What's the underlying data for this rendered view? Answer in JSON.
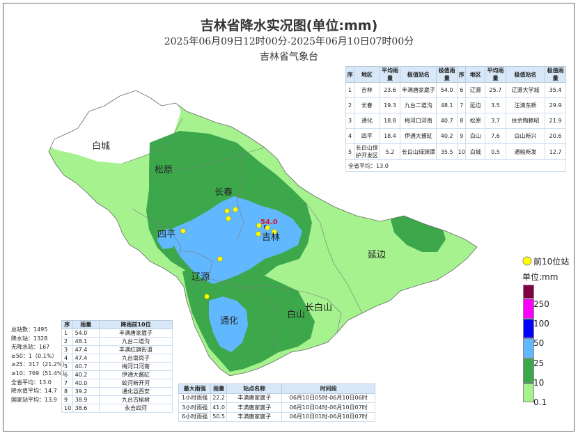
{
  "title": "吉林省降水实况图(单位:mm)",
  "period": "2025年06月09日12时00分-2025年06月10日07时00分",
  "agency": "吉林省气象台",
  "region_table": {
    "headers": [
      "序",
      "地区",
      "平均雨量",
      "极值站名",
      "极值雨量",
      "序",
      "地区",
      "平均雨量",
      "极值站名",
      "极值雨量"
    ],
    "rows": [
      [
        "1",
        "吉林",
        "23.6",
        "丰满唐家崴子",
        "54.0",
        "6",
        "辽源",
        "25.7",
        "辽源大学城",
        "35.4"
      ],
      [
        "2",
        "长春",
        "19.3",
        "九台二道沟",
        "48.1",
        "7",
        "延边",
        "3.5",
        "汪清东新",
        "29.9"
      ],
      [
        "3",
        "通化",
        "18.8",
        "梅河口河南",
        "40.7",
        "8",
        "松原",
        "3.7",
        "扶余陶赖昭",
        "21.9"
      ],
      [
        "4",
        "四平",
        "18.4",
        "伊通大酱缸",
        "40.2",
        "9",
        "白山",
        "7.6",
        "白山新兴",
        "20.6"
      ],
      [
        "5",
        "长白山保护开发区",
        "5.2",
        "长白山绿渊潭",
        "35.5",
        "10",
        "白城",
        "0.5",
        "通榆新发",
        "12.7"
      ]
    ],
    "footer": "全省平均：13.0"
  },
  "stats": [
    "总站数：1495",
    "降水站：1328",
    "无降水站：167",
    "≥50：1（0.1%）",
    "≥25：317（21.2%）",
    "≥10：769（51.4%）",
    "全省平均：13.0",
    "降水值平均：14.7",
    "国家站平均：13.9"
  ],
  "top10_table": {
    "headers": [
      "序",
      "雨量",
      "降雨前10位"
    ],
    "rows": [
      [
        "1",
        "54.0",
        "丰满唐家崴子"
      ],
      [
        "2",
        "48.1",
        "九台二道沟"
      ],
      [
        "3",
        "47.4",
        "丰满红旗街道"
      ],
      [
        "4",
        "47.4",
        "九台南岗子"
      ],
      [
        "5",
        "40.7",
        "梅河口河南"
      ],
      [
        "6",
        "40.2",
        "伊通大酱缸"
      ],
      [
        "7",
        "40.0",
        "蛟河新开河"
      ],
      [
        "8",
        "39.2",
        "通化县西安"
      ],
      [
        "9",
        "38.9",
        "九台古榆树"
      ],
      [
        "10",
        "38.6",
        "永吉四河"
      ]
    ]
  },
  "hourly_table": {
    "headers": [
      "最大雨强",
      "雨量",
      "站点名称",
      "时间段"
    ],
    "rows": [
      [
        "1小时雨强",
        "22.2",
        "丰满唐家崴子",
        "06月10日05时-06月10日06时"
      ],
      [
        "3小时雨强",
        "41.0",
        "丰满唐家崴子",
        "06月10日04时-06月10日07时"
      ],
      [
        "6小时雨强",
        "50.5",
        "丰满唐家崴子",
        "06月10日01时-06月10日07时"
      ]
    ]
  },
  "map": {
    "max_label": "54.0",
    "regions": {
      "baicheng": "白城",
      "songyuan": "松原",
      "changchun": "长春",
      "jilin": "吉林",
      "siping": "四平",
      "liaoyuan": "辽源",
      "yanbian": "延边",
      "changbaishan": "长白山",
      "baishan": "白山",
      "tonghua": "通化"
    }
  },
  "legend": {
    "top10_label": "前10位站",
    "unit_label": "单位:mm",
    "levels": [
      "250",
      "100",
      "50",
      "25",
      "10",
      "0.1"
    ],
    "colors": {
      "none": "#ffffff",
      "l01": "#a6f28f",
      "l10": "#3da84b",
      "l25": "#61b8ff",
      "l50": "#0000fe",
      "l100": "#fa00fa",
      "l250": "#800040",
      "station": "#ffff00"
    }
  }
}
